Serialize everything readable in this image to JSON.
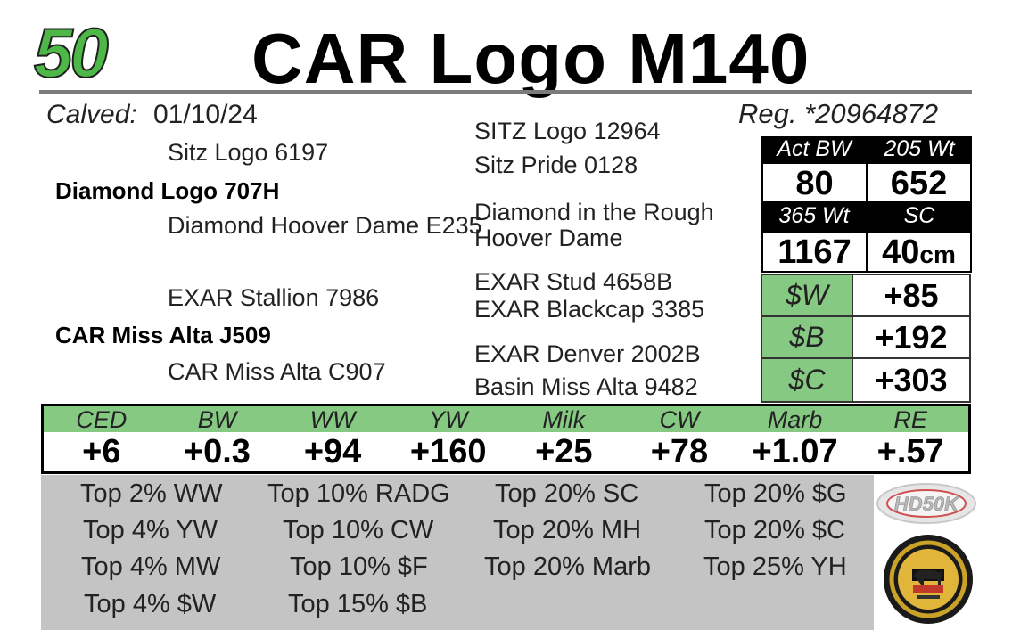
{
  "header": {
    "lot_number": "50",
    "animal_name": "CAR Logo M140"
  },
  "birth": {
    "calved_label": "Calved:",
    "calved_date": "01/10/24",
    "registration": "Reg. *20964872"
  },
  "pedigree": {
    "sire": "Diamond Logo 707H",
    "sire_sire": "Sitz Logo 6197",
    "sire_dam": "Diamond Hoover Dame E235",
    "sire_sire_sire": "SITZ Logo 12964",
    "sire_sire_dam": "Sitz Pride 0128",
    "sire_dam_sire": "Diamond in the Rough",
    "sire_dam_dam": "Hoover Dame",
    "dam": "CAR Miss Alta J509",
    "dam_sire": "EXAR Stallion 7986",
    "dam_dam": "CAR Miss Alta C907",
    "dam_sire_sire": "EXAR Stud 4658B",
    "dam_sire_dam": "EXAR Blackcap 3385",
    "dam_dam_sire": "EXAR Denver 2002B",
    "dam_dam_dam": "Basin Miss Alta 9482"
  },
  "weights": {
    "act_bw_label": "Act BW",
    "act_bw": "80",
    "wt205_label": "205 Wt",
    "wt205": "652",
    "wt365_label": "365 Wt",
    "wt365": "1167",
    "sc_label": "SC",
    "sc": "40",
    "sc_unit": "cm"
  },
  "indexes": [
    {
      "label": "$W",
      "value": "+85"
    },
    {
      "label": "$B",
      "value": "+192"
    },
    {
      "label": "$C",
      "value": "+303"
    }
  ],
  "epds": [
    {
      "label": "CED",
      "value": "+6"
    },
    {
      "label": "BW",
      "value": "+0.3"
    },
    {
      "label": "WW",
      "value": "+94"
    },
    {
      "label": "YW",
      "value": "+160"
    },
    {
      "label": "Milk",
      "value": "+25"
    },
    {
      "label": "CW",
      "value": "+78"
    },
    {
      "label": "Marb",
      "value": "+1.07"
    },
    {
      "label": "RE",
      "value": "+.57"
    }
  ],
  "top_percent": [
    "Top 2% WW",
    "Top 10% RADG",
    "Top 20% SC",
    "Top 20% $G",
    "Top 4% YW",
    "Top 10% CW",
    "Top 20% MH",
    "Top 20% $C",
    "Top 4% MW",
    "Top 10% $F",
    "Top 20% Marb",
    "Top 25% YH",
    "Top 4% $W",
    "Top 15% $B"
  ],
  "logos": {
    "hd50k": "HD50K"
  },
  "colors": {
    "lot_green": "#4db848",
    "index_green": "#86c983",
    "top_gray": "#c4c4c4"
  }
}
